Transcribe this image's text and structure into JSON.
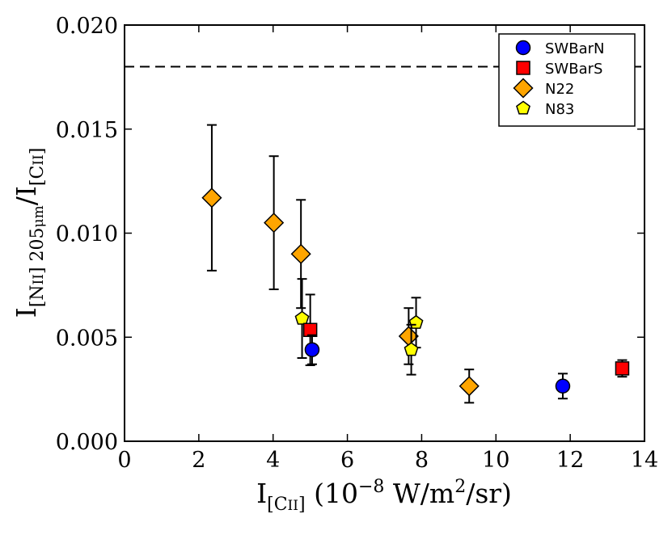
{
  "chart_data": {
    "type": "scatter",
    "title": "",
    "xlabel": {
      "main": "I",
      "sub": "[C",
      "sub_sc": "II",
      "sub_end": "]",
      "rest": " (10",
      "exp": "−8",
      "rest2": " W/m",
      "exp2": "2",
      "rest3": "/sr)"
    },
    "ylabel": {
      "main": "I",
      "sub1": "[N",
      "sub1_sc": "II",
      "sub1_end": "] 205",
      "sub1_mu": "μm",
      "slash": "/I",
      "sub2": "[C",
      "sub2_sc": "II",
      "sub2_end": "]"
    },
    "xlim": [
      0,
      14
    ],
    "ylim": [
      0,
      0.02
    ],
    "xticks": [
      0,
      2,
      4,
      6,
      8,
      10,
      12,
      14
    ],
    "xtick_labels": [
      "0",
      "2",
      "4",
      "6",
      "8",
      "10",
      "12",
      "14"
    ],
    "yticks": [
      0,
      0.005,
      0.01,
      0.015,
      0.02
    ],
    "ytick_labels": [
      "0.000",
      "0.005",
      "0.010",
      "0.015",
      "0.020"
    ],
    "reference_line": {
      "y": 0.018,
      "style": "dashed"
    },
    "legend_position": "top-right",
    "series": [
      {
        "name": "SWBarN",
        "marker": "circle",
        "color": "#0000ff",
        "points": [
          {
            "x": 5.05,
            "y": 0.0044,
            "err": 0.0007
          },
          {
            "x": 11.8,
            "y": 0.00265,
            "err": 0.0006
          }
        ]
      },
      {
        "name": "SWBarS",
        "marker": "square",
        "color": "#ff0000",
        "points": [
          {
            "x": 5.0,
            "y": 0.00535,
            "err": 0.0017
          },
          {
            "x": 13.4,
            "y": 0.0035,
            "err": 0.0004
          }
        ]
      },
      {
        "name": "N22",
        "marker": "diamond",
        "color": "#ffa500",
        "points": [
          {
            "x": 2.35,
            "y": 0.0117,
            "err": 0.0035
          },
          {
            "x": 4.02,
            "y": 0.0105,
            "err": 0.0032
          },
          {
            "x": 4.75,
            "y": 0.009,
            "err": 0.0026
          },
          {
            "x": 7.65,
            "y": 0.00505,
            "err": 0.00135
          },
          {
            "x": 9.28,
            "y": 0.00265,
            "err": 0.0008
          }
        ]
      },
      {
        "name": "N83",
        "marker": "pentagon",
        "color": "#ffff00",
        "points": [
          {
            "x": 4.78,
            "y": 0.0059,
            "err": 0.0019
          },
          {
            "x": 7.85,
            "y": 0.0057,
            "err": 0.0012
          },
          {
            "x": 7.72,
            "y": 0.0044,
            "err": 0.0012
          }
        ]
      }
    ]
  }
}
